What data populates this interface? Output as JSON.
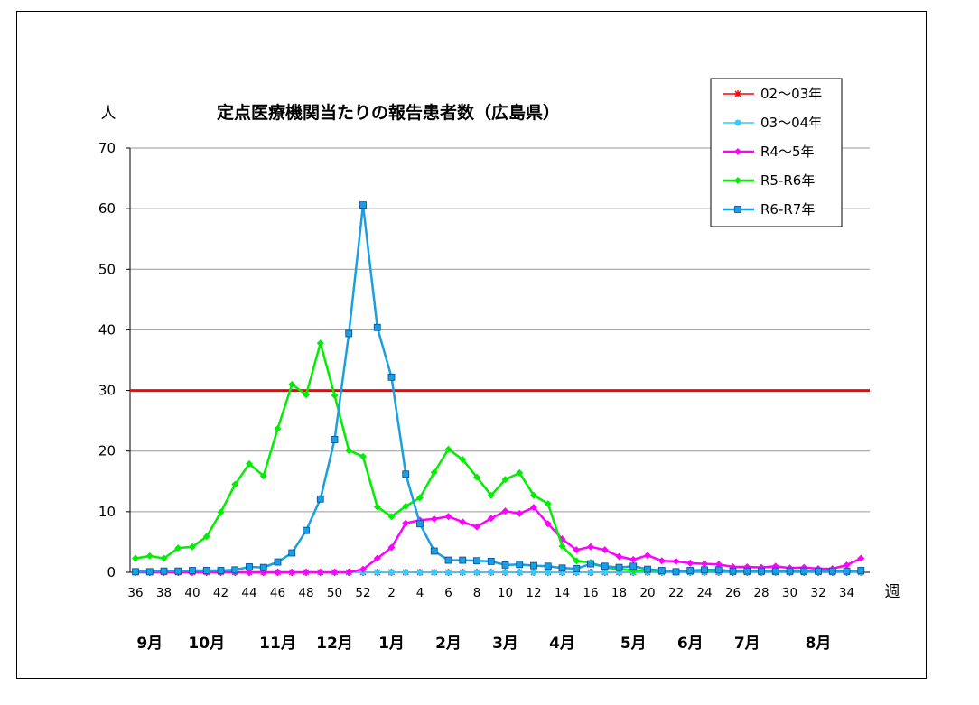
{
  "chart_data": {
    "type": "line",
    "title": "定点医療機関当たりの報告患者数（広島県）",
    "ylabel": "人",
    "xlabel": "週",
    "ylim": [
      0,
      70
    ],
    "yticks": [
      0,
      10,
      20,
      30,
      40,
      50,
      60,
      70
    ],
    "grid": true,
    "legend_position": "top-right",
    "x": [
      36,
      37,
      38,
      39,
      40,
      41,
      42,
      43,
      44,
      45,
      46,
      47,
      48,
      49,
      50,
      51,
      52,
      1,
      2,
      3,
      4,
      5,
      6,
      7,
      8,
      9,
      10,
      11,
      12,
      13,
      14,
      15,
      16,
      17,
      18,
      19,
      20,
      21,
      22,
      23,
      24,
      25,
      26,
      27,
      28,
      29,
      30,
      31,
      32,
      33,
      34,
      35
    ],
    "xtick_labels": [
      "36",
      "38",
      "40",
      "42",
      "44",
      "46",
      "48",
      "50",
      "52",
      "2",
      "4",
      "6",
      "8",
      "10",
      "12",
      "14",
      "16",
      "18",
      "20",
      "22",
      "24",
      "26",
      "28",
      "30",
      "32",
      "34"
    ],
    "months": [
      {
        "label": "9月",
        "week": "37"
      },
      {
        "label": "10月",
        "week": "41"
      },
      {
        "label": "11月",
        "week": "46"
      },
      {
        "label": "12月",
        "week": "50"
      },
      {
        "label": "1月",
        "week": "2"
      },
      {
        "label": "2月",
        "week": "6"
      },
      {
        "label": "3月",
        "week": "10"
      },
      {
        "label": "4月",
        "week": "14"
      },
      {
        "label": "5月",
        "week": "19"
      },
      {
        "label": "6月",
        "week": "23"
      },
      {
        "label": "7月",
        "week": "27"
      },
      {
        "label": "8月",
        "week": "32"
      }
    ],
    "threshold": {
      "value": 30,
      "color": "#ff0000"
    },
    "series": [
      {
        "name": "02～03年",
        "color": "#ff0000",
        "marker": "asterisk",
        "values": [
          0,
          0,
          0,
          0,
          0,
          0,
          0,
          0,
          0,
          0,
          0,
          0,
          0,
          0,
          0,
          0,
          0,
          0,
          0,
          0,
          0,
          0,
          0,
          0,
          0,
          0,
          0,
          0,
          0,
          0,
          0,
          0,
          0,
          0,
          0,
          0,
          0,
          0,
          0,
          0,
          0,
          0,
          0,
          0,
          0,
          0,
          0,
          0,
          0,
          0,
          0,
          0
        ]
      },
      {
        "name": "03～04年",
        "color": "#33ccff",
        "marker": "circle",
        "values": [
          0,
          0,
          0,
          0,
          0,
          0,
          0,
          0,
          0,
          0,
          0,
          0,
          0,
          0,
          0,
          0,
          0,
          0,
          0,
          0,
          0,
          0,
          0,
          0,
          0,
          0,
          0,
          0,
          0,
          0,
          0,
          0,
          0,
          0,
          0,
          0,
          0,
          0,
          0,
          0,
          0,
          0,
          0,
          0,
          0,
          0,
          0,
          0,
          0,
          0,
          0,
          0
        ]
      },
      {
        "name": "R4～5年",
        "color": "#ff00ff",
        "marker": "diamond",
        "values": [
          0,
          0,
          0,
          0,
          0,
          0,
          0,
          0,
          0,
          0,
          0,
          0,
          0,
          0,
          0,
          0,
          0.5,
          2.3,
          4.1,
          8.1,
          8.6,
          8.8,
          9.2,
          8.3,
          7.5,
          8.9,
          10.1,
          9.7,
          10.7,
          8.0,
          5.5,
          3.7,
          4.2,
          3.7,
          2.6,
          2.1,
          2.8,
          1.9,
          1.8,
          1.5,
          1.4,
          1.3,
          0.9,
          0.9,
          0.8,
          1.0,
          0.7,
          0.8,
          0.6,
          0.6,
          1.2,
          2.3
        ]
      },
      {
        "name": "R5-R6年",
        "color": "#00ee00",
        "marker": "diamond",
        "values": [
          2.3,
          2.7,
          2.3,
          4.0,
          4.2,
          5.9,
          9.9,
          14.5,
          17.9,
          15.9,
          23.7,
          31.0,
          29.3,
          37.8,
          29.2,
          20.1,
          19.1,
          10.8,
          9.2,
          10.9,
          12.3,
          16.5,
          20.3,
          18.6,
          15.7,
          12.7,
          15.3,
          16.4,
          12.7,
          11.3,
          4.3,
          1.9,
          1.6,
          0.8,
          0.5,
          0.3,
          0.3,
          0.2,
          0.2,
          0.2,
          0.2,
          0.2,
          0.2,
          0.2,
          0.2,
          0.2,
          0.2,
          0.2,
          0.2,
          0.2,
          0.2,
          0.2
        ]
      },
      {
        "name": "R6-R7年",
        "color": "#1a9fe0",
        "marker": "square",
        "values": [
          0.1,
          0.1,
          0.2,
          0.2,
          0.3,
          0.3,
          0.3,
          0.4,
          0.9,
          0.8,
          1.7,
          3.2,
          6.9,
          12.1,
          21.9,
          39.4,
          60.6,
          40.4,
          32.2,
          16.2,
          8.0,
          3.5,
          2.0,
          2.0,
          1.9,
          1.8,
          1.2,
          1.3,
          1.1,
          1.0,
          0.7,
          0.6,
          1.4,
          1.0,
          0.8,
          1.0,
          0.5,
          0.3,
          0.1,
          0.3,
          0.4,
          0.4,
          0.2,
          0.2,
          0.2,
          0.2,
          0.2,
          0.2,
          0.2,
          0.2,
          0.2,
          0.3
        ]
      }
    ]
  }
}
